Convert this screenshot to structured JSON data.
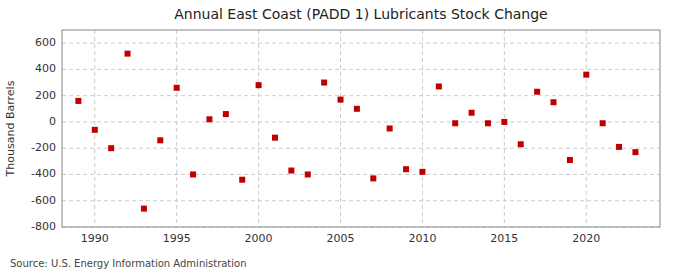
{
  "chart_data": {
    "type": "scatter",
    "title": "Annual East Coast (PADD 1) Lubricants Stock Change",
    "ylabel": "Thousand Barrels",
    "source": "Source: U.S. Energy Information Administration",
    "x": [
      1989,
      1990,
      1991,
      1992,
      1993,
      1994,
      1995,
      1996,
      1997,
      1998,
      1999,
      2000,
      2001,
      2002,
      2003,
      2004,
      2005,
      2006,
      2007,
      2008,
      2009,
      2010,
      2011,
      2012,
      2013,
      2014,
      2015,
      2016,
      2017,
      2018,
      2019,
      2020,
      2021,
      2022,
      2023
    ],
    "values": [
      160,
      -60,
      -200,
      520,
      -660,
      -140,
      260,
      -400,
      20,
      60,
      -440,
      280,
      -120,
      -370,
      -400,
      300,
      170,
      100,
      -430,
      -50,
      -360,
      -380,
      270,
      -10,
      70,
      -10,
      0,
      -170,
      230,
      150,
      -290,
      360,
      -10,
      -190,
      -230
    ],
    "color": "#c00000",
    "marker": "square",
    "xlim": [
      1988.0,
      2024.5
    ],
    "xticks": [
      1990,
      1995,
      2000,
      2005,
      2010,
      2015,
      2020
    ],
    "ylim": [
      -800,
      700
    ],
    "yticks": [
      -800,
      -600,
      -400,
      -200,
      0,
      200,
      400,
      600
    ],
    "grid": true
  }
}
